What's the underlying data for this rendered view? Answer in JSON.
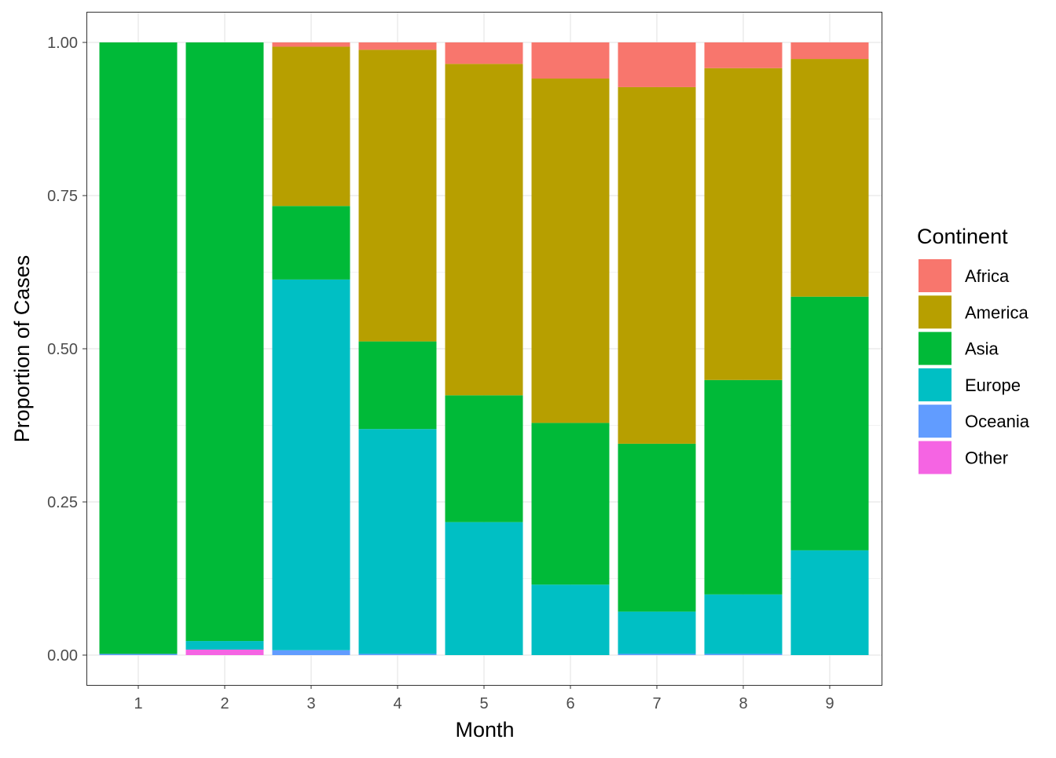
{
  "chart_data": {
    "type": "bar",
    "stacked": true,
    "xlabel": "Month",
    "ylabel": "Proportion of Cases",
    "ylim": [
      0,
      1
    ],
    "yticks": [
      "0.00",
      "0.25",
      "0.50",
      "0.75",
      "1.00"
    ],
    "ytick_values": [
      0,
      0.25,
      0.5,
      0.75,
      1
    ],
    "categories": [
      "1",
      "2",
      "3",
      "4",
      "5",
      "6",
      "7",
      "8",
      "9"
    ],
    "legend": {
      "title": "Continent",
      "placement": "right"
    },
    "series": [
      {
        "name": "Africa",
        "color": "#F8766D",
        "values": [
          0,
          0,
          0.007,
          0.012,
          0.035,
          0.059,
          0.073,
          0.042,
          0.027
        ]
      },
      {
        "name": "America",
        "color": "#B79F00",
        "values": [
          0,
          0,
          0.26,
          0.476,
          0.541,
          0.562,
          0.582,
          0.509,
          0.388
        ]
      },
      {
        "name": "Asia",
        "color": "#00BA38",
        "values": [
          0.998,
          0.977,
          0.12,
          0.143,
          0.207,
          0.264,
          0.274,
          0.35,
          0.414
        ]
      },
      {
        "name": "Europe",
        "color": "#00BFC4",
        "values": [
          0,
          0.014,
          0.605,
          0.367,
          0.217,
          0.115,
          0.069,
          0.097,
          0.171
        ]
      },
      {
        "name": "Oceania",
        "color": "#619CFF",
        "values": [
          0.002,
          0,
          0.008,
          0.002,
          0,
          0,
          0.002,
          0.002,
          0
        ]
      },
      {
        "name": "Other",
        "color": "#F564E3",
        "values": [
          0,
          0.009,
          0,
          0,
          0,
          0,
          0,
          0,
          0
        ]
      }
    ]
  }
}
